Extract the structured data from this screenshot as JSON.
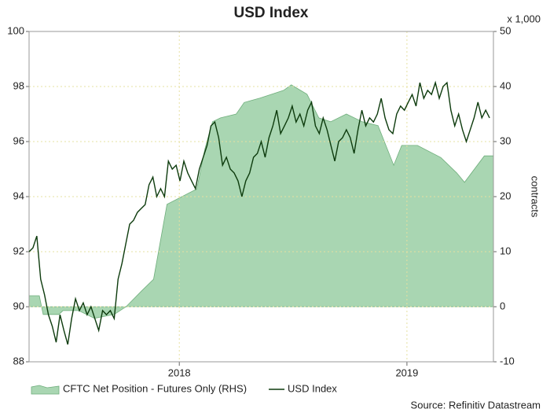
{
  "chart_data": {
    "type": "line",
    "title": "USD Index",
    "y2_label": "contracts",
    "y2_unit": "x 1,000",
    "source": "Source: Refinitiv Datastream",
    "xlim": [
      2017.34,
      2019.38
    ],
    "xticks": [
      2018,
      2019
    ],
    "ylim": [
      88,
      100
    ],
    "yticks": [
      88,
      90,
      92,
      94,
      96,
      98,
      100
    ],
    "y2lim": [
      -10,
      50
    ],
    "y2ticks": [
      -10,
      0,
      10,
      20,
      30,
      40,
      50
    ],
    "grid": true,
    "legend": "bottom-left",
    "series": [
      {
        "name": "CFTC Net Position - Futures Only (RHS)",
        "type": "area",
        "axis": "y2",
        "color": "#a9d6b2",
        "x": [
          2017.34,
          2017.385,
          2017.402,
          2017.471,
          2017.489,
          2017.558,
          2017.627,
          2017.714,
          2017.766,
          2017.835,
          2017.887,
          2017.946,
          2018.077,
          2018.112,
          2018.146,
          2018.181,
          2018.25,
          2018.285,
          2018.354,
          2018.458,
          2018.492,
          2018.561,
          2018.613,
          2018.665,
          2018.734,
          2018.804,
          2018.873,
          2018.942,
          2018.977,
          2019.046,
          2019.149,
          2019.219,
          2019.253,
          2019.34,
          2019.38
        ],
        "values": [
          2,
          2,
          -1.4,
          -1.4,
          -0.7,
          -0.7,
          -2.1,
          -1.4,
          0,
          2.9,
          5,
          18.6,
          21.4,
          28.6,
          33.6,
          34.3,
          35,
          37.1,
          37.9,
          39.3,
          40.3,
          38.6,
          34.3,
          33.6,
          35,
          33.6,
          32.9,
          25.7,
          29.3,
          29.3,
          27.1,
          24.3,
          22.6,
          27.4,
          27.4
        ]
      },
      {
        "name": "USD Index",
        "type": "line",
        "color": "#0d3b0d",
        "x": [
          2017.34,
          2017.357,
          2017.374,
          2017.391,
          2017.408,
          2017.425,
          2017.442,
          2017.459,
          2017.476,
          2017.493,
          2017.51,
          2017.527,
          2017.544,
          2017.561,
          2017.578,
          2017.595,
          2017.612,
          2017.629,
          2017.646,
          2017.663,
          2017.68,
          2017.697,
          2017.714,
          2017.731,
          2017.748,
          2017.765,
          2017.782,
          2017.799,
          2017.816,
          2017.833,
          2017.85,
          2017.867,
          2017.884,
          2017.901,
          2017.918,
          2017.935,
          2017.952,
          2017.969,
          2017.986,
          2018.003,
          2018.02,
          2018.037,
          2018.054,
          2018.071,
          2018.088,
          2018.105,
          2018.122,
          2018.139,
          2018.156,
          2018.173,
          2018.19,
          2018.207,
          2018.224,
          2018.241,
          2018.258,
          2018.275,
          2018.292,
          2018.309,
          2018.326,
          2018.343,
          2018.36,
          2018.377,
          2018.394,
          2018.411,
          2018.428,
          2018.445,
          2018.462,
          2018.479,
          2018.496,
          2018.513,
          2018.53,
          2018.547,
          2018.564,
          2018.581,
          2018.598,
          2018.615,
          2018.632,
          2018.649,
          2018.666,
          2018.683,
          2018.7,
          2018.717,
          2018.734,
          2018.751,
          2018.768,
          2018.785,
          2018.802,
          2018.819,
          2018.836,
          2018.853,
          2018.87,
          2018.887,
          2018.904,
          2018.921,
          2018.938,
          2018.955,
          2018.972,
          2018.989,
          2019.006,
          2019.023,
          2019.04,
          2019.057,
          2019.074,
          2019.091,
          2019.108,
          2019.125,
          2019.142,
          2019.159,
          2019.176,
          2019.193,
          2019.21,
          2019.227,
          2019.244,
          2019.261,
          2019.278,
          2019.295,
          2019.312,
          2019.329,
          2019.346,
          2019.363
        ],
        "values": [
          92.0,
          92.14,
          92.57,
          91.0,
          90.43,
          89.71,
          89.29,
          88.71,
          89.71,
          89.14,
          88.63,
          89.57,
          90.29,
          89.86,
          90.14,
          89.71,
          90.0,
          89.57,
          89.14,
          89.86,
          89.71,
          89.86,
          89.57,
          91.0,
          91.57,
          92.29,
          93.0,
          93.14,
          93.43,
          93.57,
          93.71,
          94.43,
          94.71,
          94.0,
          94.29,
          94.0,
          95.29,
          95.0,
          95.14,
          94.57,
          95.29,
          94.86,
          94.57,
          94.29,
          95.0,
          95.43,
          95.86,
          96.57,
          96.71,
          96.14,
          95.14,
          95.43,
          95.0,
          94.86,
          94.57,
          94.0,
          94.57,
          94.86,
          95.43,
          95.57,
          96.0,
          95.43,
          96.14,
          96.57,
          97.14,
          96.29,
          96.57,
          96.86,
          97.29,
          96.71,
          97.0,
          96.57,
          97.14,
          97.43,
          96.57,
          96.29,
          96.86,
          96.43,
          95.86,
          95.29,
          96.0,
          96.14,
          96.43,
          96.14,
          95.57,
          96.43,
          97.14,
          96.57,
          96.86,
          96.71,
          97.0,
          97.57,
          96.86,
          96.43,
          96.29,
          97.0,
          97.29,
          97.14,
          97.43,
          97.71,
          97.29,
          98.14,
          97.57,
          97.86,
          97.71,
          98.14,
          97.57,
          98.0,
          98.14,
          97.14,
          96.57,
          97.0,
          96.43,
          96.0,
          96.43,
          96.86,
          97.43,
          96.86,
          97.14,
          96.86
        ]
      }
    ]
  }
}
